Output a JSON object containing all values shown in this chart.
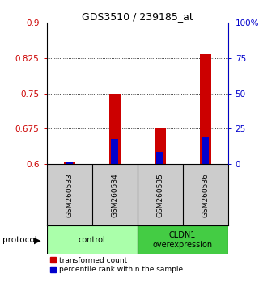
{
  "title": "GDS3510 / 239185_at",
  "samples": [
    "GSM260533",
    "GSM260534",
    "GSM260535",
    "GSM260536"
  ],
  "red_values": [
    0.603,
    0.75,
    0.675,
    0.833
  ],
  "blue_values": [
    0.6045,
    0.6535,
    0.6265,
    0.6575
  ],
  "red_base": 0.6,
  "ylim_left": [
    0.6,
    0.9
  ],
  "yticks_left": [
    0.6,
    0.675,
    0.75,
    0.825,
    0.9
  ],
  "ytick_labels_left": [
    "0.6",
    "0.675",
    "0.75",
    "0.825",
    "0.9"
  ],
  "ylim_right": [
    0,
    100
  ],
  "yticks_right": [
    0,
    25,
    50,
    75,
    100
  ],
  "ytick_labels_right": [
    "0",
    "25",
    "50",
    "75",
    "100%"
  ],
  "bar_width": 0.25,
  "bar_color_red": "#cc0000",
  "bar_color_blue": "#0000cc",
  "groups": [
    {
      "label": "control",
      "samples": [
        0,
        1
      ],
      "color": "#aaffaa"
    },
    {
      "label": "CLDN1\noverexpression",
      "samples": [
        2,
        3
      ],
      "color": "#44cc44"
    }
  ],
  "protocol_label": "protocol",
  "legend_red": "transformed count",
  "legend_blue": "percentile rank within the sample",
  "bg_color": "#ffffff",
  "axis_color_left": "#cc0000",
  "axis_color_right": "#0000cc",
  "sample_box_color": "#cccccc"
}
